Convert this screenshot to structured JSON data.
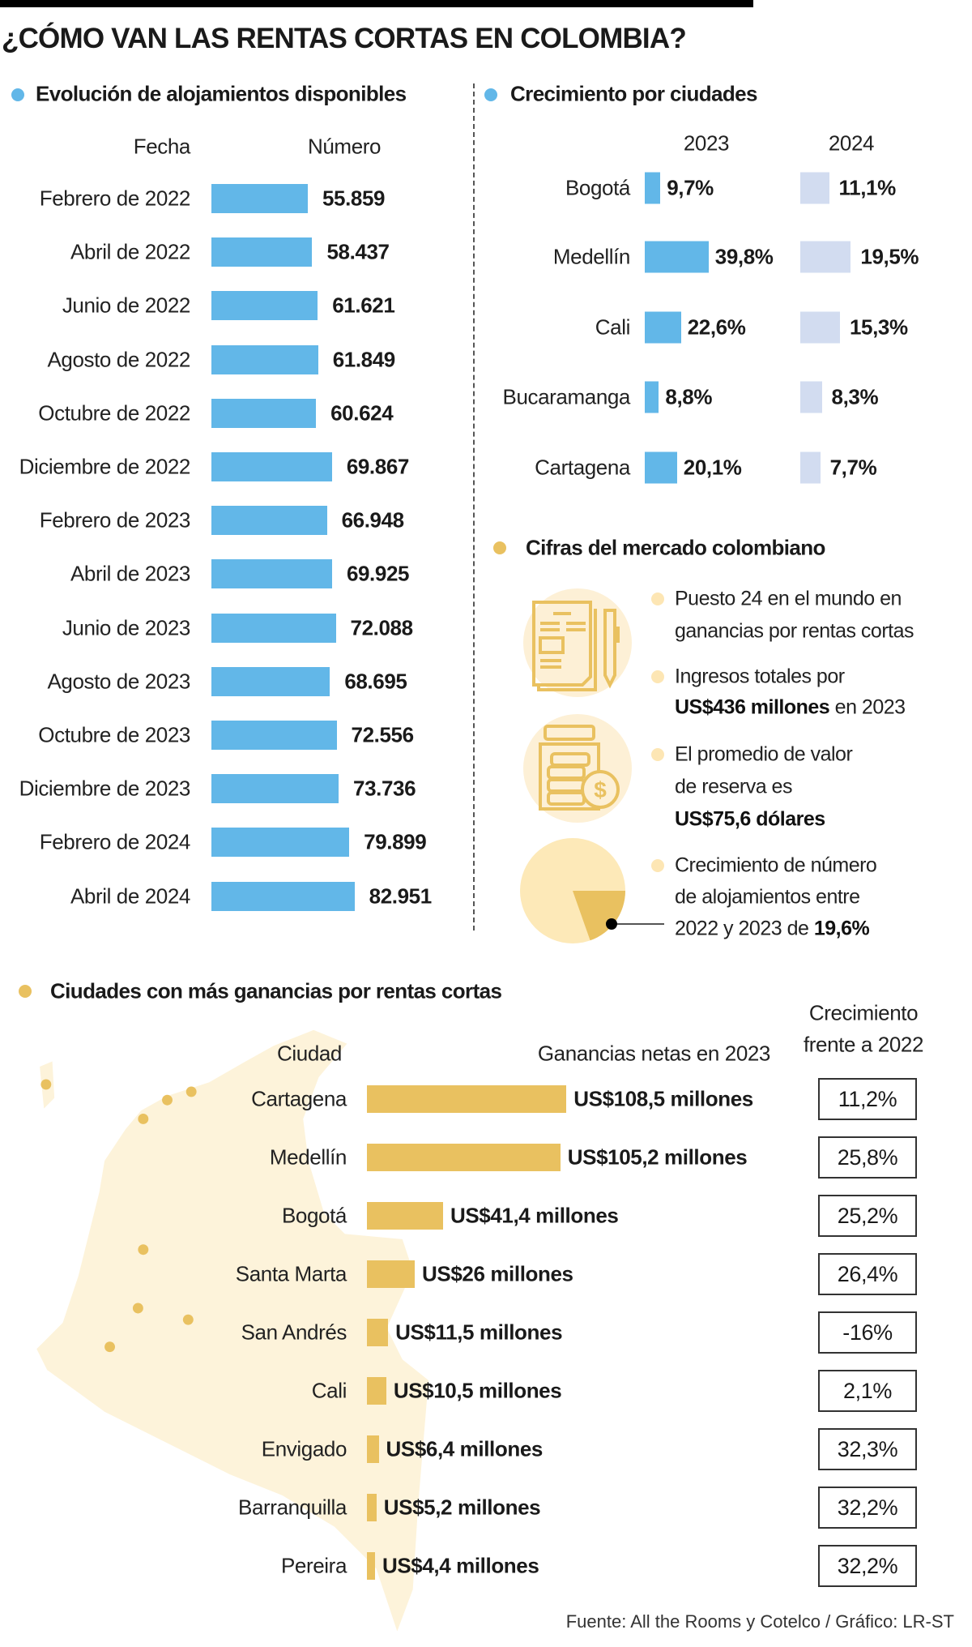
{
  "title": "¿CÓMO VAN LAS RENTAS CORTAS EN COLOMBIA?",
  "colors": {
    "blue": "#62b7e8",
    "light_blue": "#d2dcf0",
    "gold": "#e9c160",
    "cream": "#fdf3da"
  },
  "evolucion": {
    "heading": "Evolución de alojamientos disponibles",
    "col_fecha": "Fecha",
    "col_numero": "Número"
  },
  "crecimiento": {
    "heading": "Crecimiento por ciudades",
    "year_a": "2023",
    "year_b": "2024"
  },
  "cifras": {
    "heading": "Cifras del mercado colombiano",
    "items": [
      {
        "lines": [
          {
            "t": "Puesto 24 en el mundo en"
          },
          {
            "t": "ganancias por rentas cortas"
          }
        ]
      },
      {
        "lines": [
          {
            "t": "Ingresos totales por"
          },
          {
            "b": "US$436 millones",
            "t": " en 2023"
          }
        ]
      },
      {
        "lines": [
          {
            "t": "El promedio de valor"
          },
          {
            "t": "de reserva es"
          },
          {
            "b": "US$75,6 dólares"
          }
        ]
      },
      {
        "lines": [
          {
            "t": "Crecimiento de número"
          },
          {
            "t": "de alojamientos entre"
          },
          {
            "t": "2022 y 2023 de ",
            "b2": "19,6%"
          }
        ]
      }
    ],
    "icons": [
      "document-pen-icon",
      "coin-jar-icon",
      "pie-chart-icon"
    ],
    "pie_share_pct": 19.6
  },
  "ciudades": {
    "heading": "Ciudades con más ganancias por rentas cortas",
    "col_ciudad": "Ciudad",
    "col_ganancias": "Ganancias netas en 2023",
    "col_crec_1": "Crecimiento",
    "col_crec_2": "frente a 2022"
  },
  "footer": "Fuente: All the Rooms y Cotelco / Gráfico: LR-ST",
  "chart_data": [
    {
      "type": "bar",
      "orientation": "horizontal",
      "title": "Evolución de alojamientos disponibles",
      "categories": [
        "Febrero de 2022",
        "Abril de 2022",
        "Junio de 2022",
        "Agosto de 2022",
        "Octubre de 2022",
        "Diciembre de 2022",
        "Febrero de 2023",
        "Abril de 2023",
        "Junio de 2023",
        "Agosto de 2023",
        "Octubre de 2023",
        "Diciembre de 2023",
        "Febrero de 2024",
        "Abril de 2024"
      ],
      "values": [
        55859,
        58437,
        61621,
        61849,
        60624,
        69867,
        66948,
        69925,
        72088,
        68695,
        72556,
        73736,
        79899,
        82951
      ],
      "labels": [
        "55.859",
        "58.437",
        "61.621",
        "61.849",
        "60.624",
        "69.867",
        "66.948",
        "69.925",
        "72.088",
        "68.695",
        "72.556",
        "73.736",
        "79.899",
        "82.951"
      ]
    },
    {
      "type": "bar",
      "orientation": "horizontal",
      "title": "Crecimiento por ciudades",
      "categories": [
        "Bogotá",
        "Medellín",
        "Cali",
        "Bucaramanga",
        "Cartagena"
      ],
      "series": [
        {
          "name": "2023",
          "values": [
            9.7,
            39.8,
            22.6,
            8.8,
            20.1
          ],
          "labels": [
            "9,7%",
            "39,8%",
            "22,6%",
            "8,8%",
            "20,1%"
          ]
        },
        {
          "name": "2024",
          "values": [
            11.1,
            19.5,
            15.3,
            8.3,
            7.7
          ],
          "labels": [
            "11,1%",
            "19,5%",
            "15,3%",
            "8,3%",
            "7,7%"
          ]
        }
      ]
    },
    {
      "type": "bar",
      "orientation": "horizontal",
      "title": "Ciudades con más ganancias por rentas cortas",
      "categories": [
        "Cartagena",
        "Medellín",
        "Bogotá",
        "Santa Marta",
        "San Andrés",
        "Cali",
        "Envigado",
        "Barranquilla",
        "Pereira"
      ],
      "values": [
        108.5,
        105.2,
        41.4,
        26,
        11.5,
        10.5,
        6.4,
        5.2,
        4.4
      ],
      "labels": [
        "US$108,5 millones",
        "US$105,2 millones",
        "US$41,4 millones",
        "US$26 millones",
        "US$11,5 millones",
        "US$10,5 millones",
        "US$6,4 millones",
        "US$5,2 millones",
        "US$4,4 millones"
      ],
      "growth_vs_2022": [
        "11,2%",
        "25,8%",
        "25,2%",
        "26,4%",
        "-16%",
        "2,1%",
        "32,3%",
        "32,2%",
        "32,2%"
      ]
    }
  ]
}
